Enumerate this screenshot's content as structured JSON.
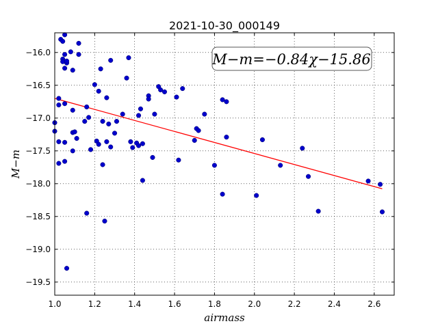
{
  "chart_data": {
    "type": "scatter",
    "title": "2021-10-30_000149",
    "xlabel": "airmass",
    "ylabel": "M−m",
    "xlim": [
      1.0,
      2.7
    ],
    "ylim": [
      -15.7,
      -19.7
    ],
    "y_inverted": true,
    "grid": true,
    "xticks": [
      "1.0",
      "1.2",
      "1.4",
      "1.6",
      "1.8",
      "2.0",
      "2.2",
      "2.4",
      "2.6"
    ],
    "yticks": [
      "−16.0",
      "−16.5",
      "−17.0",
      "−17.5",
      "−18.0",
      "−18.5",
      "−19.0",
      "−19.5"
    ],
    "annotation": "M−m=−0.84χ−15.86",
    "fit": {
      "slope": -0.84,
      "intercept": -15.86,
      "x": [
        1.0,
        2.64
      ],
      "color": "#ff0000"
    },
    "point_color": "#0000cc",
    "points": [
      [
        1.0,
        -17.07
      ],
      [
        1.0,
        -17.2
      ],
      [
        1.02,
        -17.69
      ],
      [
        1.02,
        -16.7
      ],
      [
        1.02,
        -16.8
      ],
      [
        1.02,
        -17.36
      ],
      [
        1.03,
        -15.8
      ],
      [
        1.04,
        -15.83
      ],
      [
        1.04,
        -16.1
      ],
      [
        1.04,
        -16.14
      ],
      [
        1.05,
        -16.24
      ],
      [
        1.05,
        -16.03
      ],
      [
        1.05,
        -15.73
      ],
      [
        1.05,
        -16.78
      ],
      [
        1.05,
        -17.37
      ],
      [
        1.05,
        -17.66
      ],
      [
        1.06,
        -16.16
      ],
      [
        1.06,
        -16.13
      ],
      [
        1.06,
        -19.29
      ],
      [
        1.08,
        -15.99
      ],
      [
        1.09,
        -16.27
      ],
      [
        1.09,
        -16.88
      ],
      [
        1.09,
        -17.22
      ],
      [
        1.09,
        -17.5
      ],
      [
        1.1,
        -17.21
      ],
      [
        1.11,
        -17.31
      ],
      [
        1.12,
        -15.86
      ],
      [
        1.12,
        -16.03
      ],
      [
        1.15,
        -17.05
      ],
      [
        1.16,
        -16.83
      ],
      [
        1.16,
        -18.45
      ],
      [
        1.17,
        -16.99
      ],
      [
        1.18,
        -17.48
      ],
      [
        1.2,
        -16.49
      ],
      [
        1.21,
        -17.35
      ],
      [
        1.22,
        -16.59
      ],
      [
        1.22,
        -17.4
      ],
      [
        1.23,
        -16.25
      ],
      [
        1.24,
        -17.71
      ],
      [
        1.24,
        -17.05
      ],
      [
        1.25,
        -18.57
      ],
      [
        1.26,
        -16.69
      ],
      [
        1.26,
        -17.36
      ],
      [
        1.27,
        -17.09
      ],
      [
        1.28,
        -17.44
      ],
      [
        1.28,
        -16.12
      ],
      [
        1.3,
        -17.23
      ],
      [
        1.31,
        -17.05
      ],
      [
        1.34,
        -16.94
      ],
      [
        1.36,
        -16.39
      ],
      [
        1.37,
        -16.08
      ],
      [
        1.38,
        -17.36
      ],
      [
        1.39,
        -17.45
      ],
      [
        1.41,
        -17.38
      ],
      [
        1.42,
        -17.42
      ],
      [
        1.42,
        -16.96
      ],
      [
        1.43,
        -16.86
      ],
      [
        1.44,
        -17.39
      ],
      [
        1.44,
        -17.95
      ],
      [
        1.47,
        -16.66
      ],
      [
        1.47,
        -16.71
      ],
      [
        1.49,
        -17.6
      ],
      [
        1.5,
        -16.94
      ],
      [
        1.52,
        -16.52
      ],
      [
        1.53,
        -16.57
      ],
      [
        1.55,
        -16.6
      ],
      [
        1.61,
        -16.68
      ],
      [
        1.62,
        -17.64
      ],
      [
        1.64,
        -16.55
      ],
      [
        1.7,
        -17.34
      ],
      [
        1.71,
        -17.16
      ],
      [
        1.72,
        -17.19
      ],
      [
        1.75,
        -16.94
      ],
      [
        1.8,
        -17.72
      ],
      [
        1.84,
        -16.72
      ],
      [
        1.84,
        -18.16
      ],
      [
        1.86,
        -16.75
      ],
      [
        1.86,
        -17.29
      ],
      [
        2.01,
        -18.18
      ],
      [
        2.04,
        -17.33
      ],
      [
        2.13,
        -17.72
      ],
      [
        2.24,
        -17.46
      ],
      [
        2.27,
        -17.89
      ],
      [
        2.32,
        -18.42
      ],
      [
        2.57,
        -17.96
      ],
      [
        2.63,
        -18.01
      ],
      [
        2.64,
        -18.43
      ]
    ]
  }
}
